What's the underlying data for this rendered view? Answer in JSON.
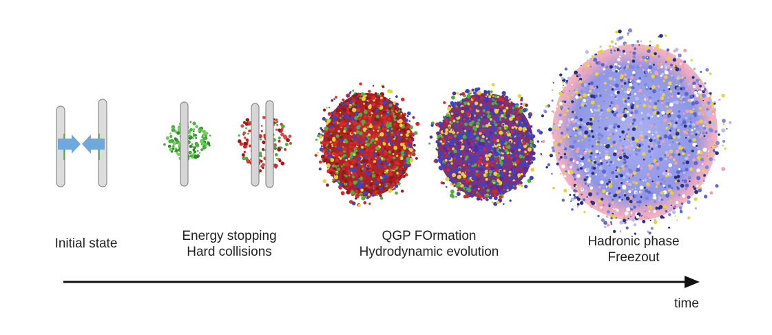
{
  "stages": [
    {
      "key": "initial",
      "lines": [
        "Initial state"
      ]
    },
    {
      "key": "energy",
      "lines": [
        "Energy stopping",
        "Hard collisions"
      ]
    },
    {
      "key": "qgp",
      "lines": [
        "QGP FOrmation",
        "Hydrodynamic evolution"
      ]
    },
    {
      "key": "hadronic",
      "lines": [
        "Hadronic phase",
        "Freezout"
      ]
    }
  ],
  "axis": {
    "label": "time"
  },
  "colors": {
    "nucleus": "#d8d8d8",
    "nucleus_edge": "#8a8a8a",
    "arrow": "#6fa8dc",
    "green": "#4caf3f",
    "red": "#d42a2a",
    "blue": "#3a44c4",
    "yellow": "#e8d23a",
    "hadron_blue": "#7f88e0",
    "hadron_pink": "#f0a0b0",
    "axis": "#111111"
  },
  "icons": [
    "collision-arrow-icon"
  ]
}
